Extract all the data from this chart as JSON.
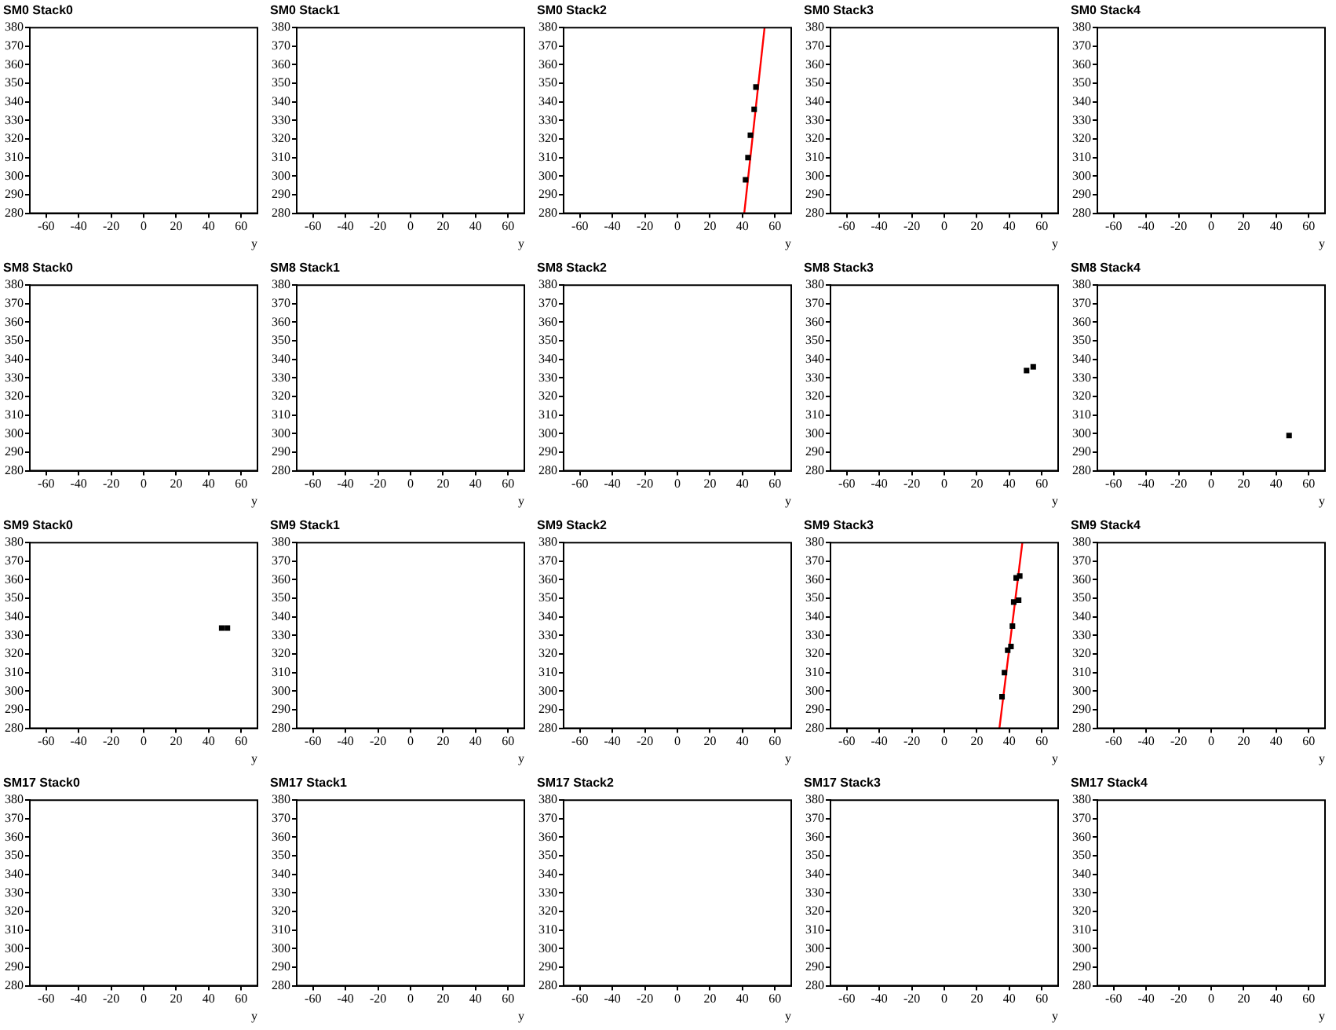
{
  "chart_data": [
    {
      "type": "scatter",
      "title": "SM0 Stack0",
      "xlabel": "y",
      "xlim": [
        -70,
        70
      ],
      "xticks": [
        -60,
        -40,
        -20,
        0,
        20,
        40,
        60
      ],
      "ylim": [
        280,
        380
      ],
      "yticks": [
        280,
        290,
        300,
        310,
        320,
        330,
        340,
        350,
        360,
        370,
        380
      ],
      "grid": false,
      "legend": false
    },
    {
      "type": "scatter",
      "title": "SM0 Stack1",
      "xlabel": "y",
      "xlim": [
        -70,
        70
      ],
      "xticks": [
        -60,
        -40,
        -20,
        0,
        20,
        40,
        60
      ],
      "ylim": [
        280,
        380
      ],
      "yticks": [
        280,
        290,
        300,
        310,
        320,
        330,
        340,
        350,
        360,
        370,
        380
      ],
      "grid": false,
      "legend": false
    },
    {
      "type": "scatter",
      "title": "SM0 Stack2",
      "xlabel": "y",
      "xlim": [
        -70,
        70
      ],
      "xticks": [
        -60,
        -40,
        -20,
        0,
        20,
        40,
        60
      ],
      "ylim": [
        280,
        380
      ],
      "yticks": [
        280,
        290,
        300,
        310,
        320,
        330,
        340,
        350,
        360,
        370,
        380
      ],
      "grid": false,
      "legend": false,
      "series": [
        {
          "type": "scatter",
          "marker": "square",
          "color": "#000000",
          "x": [
            41.9,
            43.4,
            44.9,
            47.2,
            48.3
          ],
          "values": [
            298,
            310,
            322,
            336,
            348
          ]
        },
        {
          "type": "line",
          "marker": "none",
          "color": "#ff0000",
          "x": [
            41.1,
            53.6
          ],
          "values": [
            280,
            380
          ]
        }
      ]
    },
    {
      "type": "scatter",
      "title": "SM0 Stack3",
      "xlabel": "y",
      "xlim": [
        -70,
        70
      ],
      "xticks": [
        -60,
        -40,
        -20,
        0,
        20,
        40,
        60
      ],
      "ylim": [
        280,
        380
      ],
      "yticks": [
        280,
        290,
        300,
        310,
        320,
        330,
        340,
        350,
        360,
        370,
        380
      ],
      "grid": false,
      "legend": false
    },
    {
      "type": "scatter",
      "title": "SM0 Stack4",
      "xlabel": "y",
      "xlim": [
        -70,
        70
      ],
      "xticks": [
        -60,
        -40,
        -20,
        0,
        20,
        40,
        60
      ],
      "ylim": [
        280,
        380
      ],
      "yticks": [
        280,
        290,
        300,
        310,
        320,
        330,
        340,
        350,
        360,
        370,
        380
      ],
      "grid": false,
      "legend": false
    },
    {
      "type": "scatter",
      "title": "SM8 Stack0",
      "xlabel": "y",
      "xlim": [
        -70,
        70
      ],
      "xticks": [
        -60,
        -40,
        -20,
        0,
        20,
        40,
        60
      ],
      "ylim": [
        280,
        380
      ],
      "yticks": [
        280,
        290,
        300,
        310,
        320,
        330,
        340,
        350,
        360,
        370,
        380
      ],
      "grid": false,
      "legend": false
    },
    {
      "type": "scatter",
      "title": "SM8 Stack1",
      "xlabel": "y",
      "xlim": [
        -70,
        70
      ],
      "xticks": [
        -60,
        -40,
        -20,
        0,
        20,
        40,
        60
      ],
      "ylim": [
        280,
        380
      ],
      "yticks": [
        280,
        290,
        300,
        310,
        320,
        330,
        340,
        350,
        360,
        370,
        380
      ],
      "grid": false,
      "legend": false
    },
    {
      "type": "scatter",
      "title": "SM8 Stack2",
      "xlabel": "y",
      "xlim": [
        -70,
        70
      ],
      "xticks": [
        -60,
        -40,
        -20,
        0,
        20,
        40,
        60
      ],
      "ylim": [
        280,
        380
      ],
      "yticks": [
        280,
        290,
        300,
        310,
        320,
        330,
        340,
        350,
        360,
        370,
        380
      ],
      "grid": false,
      "legend": false
    },
    {
      "type": "scatter",
      "title": "SM8 Stack3",
      "xlabel": "y",
      "xlim": [
        -70,
        70
      ],
      "xticks": [
        -60,
        -40,
        -20,
        0,
        20,
        40,
        60
      ],
      "ylim": [
        280,
        380
      ],
      "yticks": [
        280,
        290,
        300,
        310,
        320,
        330,
        340,
        350,
        360,
        370,
        380
      ],
      "grid": false,
      "legend": false,
      "series": [
        {
          "type": "scatter",
          "marker": "square",
          "color": "#000000",
          "x": [
            50.6,
            54.7
          ],
          "values": [
            334,
            336
          ]
        }
      ]
    },
    {
      "type": "scatter",
      "title": "SM8 Stack4",
      "xlabel": "y",
      "xlim": [
        -70,
        70
      ],
      "xticks": [
        -60,
        -40,
        -20,
        0,
        20,
        40,
        60
      ],
      "ylim": [
        280,
        380
      ],
      "yticks": [
        280,
        290,
        300,
        310,
        320,
        330,
        340,
        350,
        360,
        370,
        380
      ],
      "grid": false,
      "legend": false,
      "series": [
        {
          "type": "scatter",
          "marker": "square",
          "color": "#000000",
          "x": [
            47.9
          ],
          "values": [
            299
          ]
        }
      ]
    },
    {
      "type": "scatter",
      "title": "SM9 Stack0",
      "xlabel": "y",
      "xlim": [
        -70,
        70
      ],
      "xticks": [
        -60,
        -40,
        -20,
        0,
        20,
        40,
        60
      ],
      "ylim": [
        280,
        380
      ],
      "yticks": [
        280,
        290,
        300,
        310,
        320,
        330,
        340,
        350,
        360,
        370,
        380
      ],
      "grid": false,
      "legend": false,
      "series": [
        {
          "type": "scatter",
          "marker": "square",
          "color": "#000000",
          "x": [
            48,
            51.5
          ],
          "values": [
            334,
            334
          ]
        }
      ]
    },
    {
      "type": "scatter",
      "title": "SM9 Stack1",
      "xlabel": "y",
      "xlim": [
        -70,
        70
      ],
      "xticks": [
        -60,
        -40,
        -20,
        0,
        20,
        40,
        60
      ],
      "ylim": [
        280,
        380
      ],
      "yticks": [
        280,
        290,
        300,
        310,
        320,
        330,
        340,
        350,
        360,
        370,
        380
      ],
      "grid": false,
      "legend": false
    },
    {
      "type": "scatter",
      "title": "SM9 Stack2",
      "xlabel": "y",
      "xlim": [
        -70,
        70
      ],
      "xticks": [
        -60,
        -40,
        -20,
        0,
        20,
        40,
        60
      ],
      "ylim": [
        280,
        380
      ],
      "yticks": [
        280,
        290,
        300,
        310,
        320,
        330,
        340,
        350,
        360,
        370,
        380
      ],
      "grid": false,
      "legend": false
    },
    {
      "type": "scatter",
      "title": "SM9 Stack3",
      "xlabel": "y",
      "xlim": [
        -70,
        70
      ],
      "xticks": [
        -60,
        -40,
        -20,
        0,
        20,
        40,
        60
      ],
      "ylim": [
        280,
        380
      ],
      "yticks": [
        280,
        290,
        300,
        310,
        320,
        330,
        340,
        350,
        360,
        370,
        380
      ],
      "grid": false,
      "legend": false,
      "series": [
        {
          "type": "scatter",
          "marker": "square",
          "color": "#000000",
          "x": [
            35.5,
            37,
            39,
            41,
            41.9,
            42.7,
            45.7,
            44.2,
            46.4
          ],
          "values": [
            297,
            310,
            322,
            324,
            335,
            348,
            349,
            361,
            362
          ]
        },
        {
          "type": "line",
          "marker": "none",
          "color": "#ff0000",
          "x": [
            33.9,
            48
          ],
          "values": [
            280,
            380
          ]
        }
      ]
    },
    {
      "type": "scatter",
      "title": "SM9 Stack4",
      "xlabel": "y",
      "xlim": [
        -70,
        70
      ],
      "xticks": [
        -60,
        -40,
        -20,
        0,
        20,
        40,
        60
      ],
      "ylim": [
        280,
        380
      ],
      "yticks": [
        280,
        290,
        300,
        310,
        320,
        330,
        340,
        350,
        360,
        370,
        380
      ],
      "grid": false,
      "legend": false
    },
    {
      "type": "scatter",
      "title": "SM17 Stack0",
      "xlabel": "y",
      "xlim": [
        -70,
        70
      ],
      "xticks": [
        -60,
        -40,
        -20,
        0,
        20,
        40,
        60
      ],
      "ylim": [
        280,
        380
      ],
      "yticks": [
        280,
        290,
        300,
        310,
        320,
        330,
        340,
        350,
        360,
        370,
        380
      ],
      "grid": false,
      "legend": false
    },
    {
      "type": "scatter",
      "title": "SM17 Stack1",
      "xlabel": "y",
      "xlim": [
        -70,
        70
      ],
      "xticks": [
        -60,
        -40,
        -20,
        0,
        20,
        40,
        60
      ],
      "ylim": [
        280,
        380
      ],
      "yticks": [
        280,
        290,
        300,
        310,
        320,
        330,
        340,
        350,
        360,
        370,
        380
      ],
      "grid": false,
      "legend": false
    },
    {
      "type": "scatter",
      "title": "SM17 Stack2",
      "xlabel": "y",
      "xlim": [
        -70,
        70
      ],
      "xticks": [
        -60,
        -40,
        -20,
        0,
        20,
        40,
        60
      ],
      "ylim": [
        280,
        380
      ],
      "yticks": [
        280,
        290,
        300,
        310,
        320,
        330,
        340,
        350,
        360,
        370,
        380
      ],
      "grid": false,
      "legend": false
    },
    {
      "type": "scatter",
      "title": "SM17 Stack3",
      "xlabel": "y",
      "xlim": [
        -70,
        70
      ],
      "xticks": [
        -60,
        -40,
        -20,
        0,
        20,
        40,
        60
      ],
      "ylim": [
        280,
        380
      ],
      "yticks": [
        280,
        290,
        300,
        310,
        320,
        330,
        340,
        350,
        360,
        370,
        380
      ],
      "grid": false,
      "legend": false
    },
    {
      "type": "scatter",
      "title": "SM17 Stack4",
      "xlabel": "y",
      "xlim": [
        -70,
        70
      ],
      "xticks": [
        -60,
        -40,
        -20,
        0,
        20,
        40,
        60
      ],
      "ylim": [
        280,
        380
      ],
      "yticks": [
        280,
        290,
        300,
        310,
        320,
        330,
        340,
        350,
        360,
        370,
        380
      ],
      "grid": false,
      "legend": false
    }
  ]
}
